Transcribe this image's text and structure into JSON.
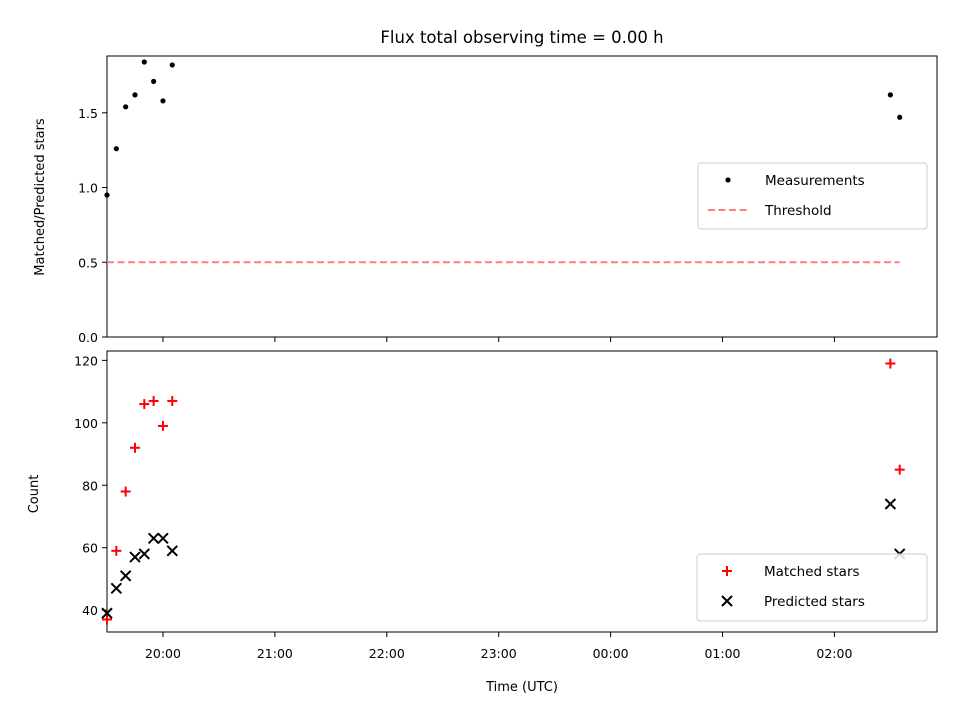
{
  "title": "Flux total observing time = 0.00 h",
  "xlabel": "Time (UTC)",
  "chart_data": [
    {
      "type": "scatter",
      "title": "Flux total observing time = 0.00 h",
      "ylabel": "Matched/Predicted stars",
      "xlim": [
        "19:30",
        "02:55"
      ],
      "ylim": [
        0,
        1.88
      ],
      "yticks": [
        "0.0",
        "0.5",
        "1.0",
        "1.5"
      ],
      "legend_position": "center-right",
      "series": [
        {
          "name": "Measurements",
          "marker": "dot",
          "color": "#000000",
          "x": [
            "19:30",
            "19:35",
            "19:40",
            "19:45",
            "19:50",
            "19:55",
            "20:00",
            "20:05",
            "02:30",
            "02:35"
          ],
          "y": [
            0.95,
            1.26,
            1.54,
            1.62,
            1.84,
            1.71,
            1.58,
            1.82,
            1.62,
            1.47
          ]
        },
        {
          "name": "Threshold",
          "style": "dashed-line",
          "color": "#ff7f7f",
          "x": [
            "19:30",
            "02:35"
          ],
          "y": [
            0.5,
            0.5
          ]
        }
      ]
    },
    {
      "type": "scatter",
      "ylabel": "Count",
      "xlim": [
        "19:30",
        "02:55"
      ],
      "ylim": [
        33,
        123
      ],
      "yticks": [
        "40",
        "60",
        "80",
        "100",
        "120"
      ],
      "xticks": [
        "20:00",
        "21:00",
        "22:00",
        "23:00",
        "00:00",
        "01:00",
        "02:00"
      ],
      "legend_position": "lower-right",
      "series": [
        {
          "name": "Matched stars",
          "marker": "plus",
          "color": "#ff0000",
          "x": [
            "19:30",
            "19:35",
            "19:40",
            "19:45",
            "19:50",
            "19:55",
            "20:00",
            "20:05",
            "02:30",
            "02:35"
          ],
          "y": [
            37,
            59,
            78,
            92,
            106,
            107,
            99,
            107,
            119,
            85
          ]
        },
        {
          "name": "Predicted stars",
          "marker": "x",
          "color": "#000000",
          "x": [
            "19:30",
            "19:35",
            "19:40",
            "19:45",
            "19:50",
            "19:55",
            "20:00",
            "20:05",
            "02:30",
            "02:35"
          ],
          "y": [
            39,
            47,
            51,
            57,
            58,
            63,
            63,
            59,
            74,
            58
          ]
        }
      ]
    }
  ]
}
